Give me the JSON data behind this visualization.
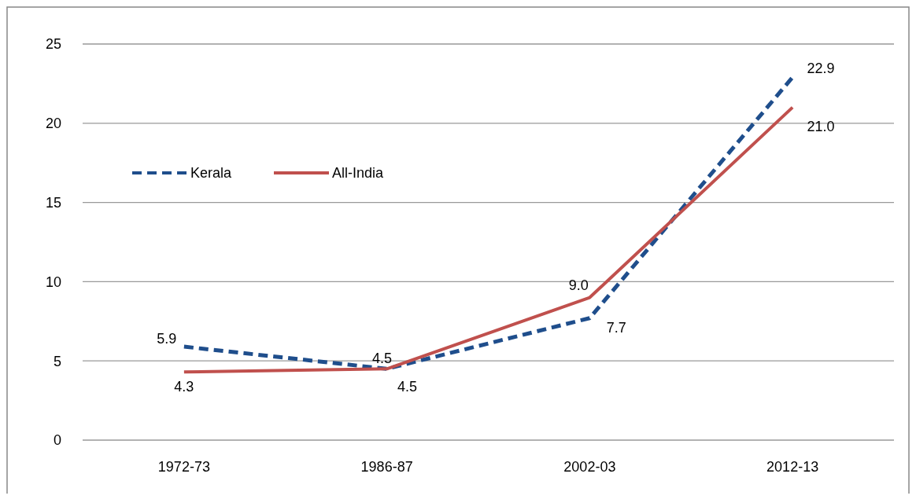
{
  "chart_data": {
    "type": "line",
    "categories": [
      "1972-73",
      "1986-87",
      "2002-03",
      "2012-13"
    ],
    "series": [
      {
        "name": "Kerala",
        "color": "#1f4e8c",
        "line_style": "dashed",
        "values": [
          5.9,
          4.5,
          7.7,
          22.9
        ],
        "value_labels": [
          "5.9",
          "4.5",
          "7.7",
          "22.9"
        ]
      },
      {
        "name": "All-India",
        "color": "#c0504d",
        "line_style": "solid",
        "values": [
          4.3,
          4.5,
          9.0,
          21.0
        ],
        "value_labels": [
          "4.3",
          "4.5",
          "9.0",
          "21.0"
        ]
      }
    ],
    "ylim": [
      0,
      25
    ],
    "yticks": [
      0,
      5,
      10,
      15,
      20,
      25
    ],
    "grid": "y",
    "legend": "top left",
    "marker": "none"
  }
}
